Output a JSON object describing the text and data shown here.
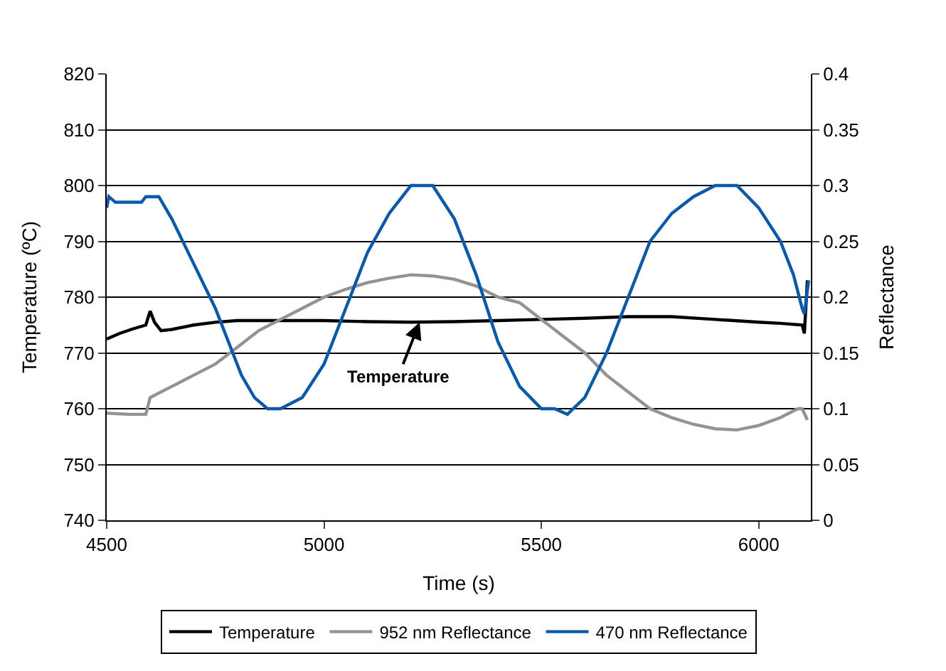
{
  "chart_data": {
    "type": "line",
    "xlabel": "Time (s)",
    "ylabel": "Temperature (ºC)",
    "y2label": "Reflectance",
    "xlim": [
      4500,
      6120
    ],
    "xticks": [
      4500,
      5000,
      5500,
      6000
    ],
    "ylim": [
      740,
      820
    ],
    "yticks": [
      740,
      750,
      760,
      770,
      780,
      790,
      800,
      810,
      820
    ],
    "y2lim": [
      0,
      0.4
    ],
    "y2ticks": [
      0,
      0.05,
      0.1,
      0.15,
      0.2,
      0.25,
      0.3,
      0.35,
      0.4
    ],
    "grid": "y",
    "legend": "bottom",
    "marker": "none",
    "line_style": "solid",
    "annotations": [
      {
        "text": "Temperature",
        "x": 5220,
        "y": 775.5
      }
    ],
    "series": [
      {
        "name": "Temperature",
        "color": "#000000",
        "x": [
          4500,
          4530,
          4560,
          4590,
          4600,
          4610,
          4625,
          4650,
          4700,
          4750,
          4800,
          4900,
          5000,
          5100,
          5200,
          5300,
          5400,
          5500,
          5600,
          5700,
          5800,
          5900,
          6000,
          6050,
          6100,
          6105,
          6112
        ],
        "values": [
          772.5,
          773.5,
          774.3,
          775,
          777.5,
          775.5,
          774,
          774.2,
          775,
          775.5,
          775.8,
          775.8,
          775.8,
          775.6,
          775.5,
          775.6,
          775.8,
          776,
          776.2,
          776.5,
          776.5,
          776,
          775.5,
          775.3,
          775,
          773.5,
          783
        ]
      },
      {
        "name": "952 nm Reflectance",
        "color": "#939393",
        "axis": "y2",
        "x": [
          4500,
          4550,
          4590,
          4600,
          4650,
          4700,
          4750,
          4800,
          4850,
          4900,
          4950,
          5000,
          5050,
          5100,
          5150,
          5200,
          5250,
          5300,
          5350,
          5400,
          5450,
          5500,
          5550,
          5600,
          5650,
          5700,
          5750,
          5800,
          5850,
          5900,
          5950,
          6000,
          6050,
          6090,
          6100,
          6112
        ],
        "values": [
          0.096,
          0.095,
          0.095,
          0.11,
          0.12,
          0.13,
          0.14,
          0.155,
          0.17,
          0.18,
          0.19,
          0.2,
          0.207,
          0.213,
          0.217,
          0.22,
          0.219,
          0.216,
          0.21,
          0.2,
          0.195,
          0.18,
          0.165,
          0.15,
          0.13,
          0.115,
          0.1,
          0.092,
          0.086,
          0.082,
          0.081,
          0.085,
          0.092,
          0.1,
          0.1,
          0.09
        ]
      },
      {
        "name": "470 nm Reflectance",
        "color": "#0a5aa8",
        "axis": "y2",
        "x": [
          4500,
          4505,
          4520,
          4580,
          4590,
          4620,
          4650,
          4700,
          4750,
          4780,
          4810,
          4840,
          4870,
          4900,
          4950,
          5000,
          5050,
          5100,
          5150,
          5180,
          5200,
          5250,
          5300,
          5350,
          5400,
          5450,
          5500,
          5530,
          5560,
          5600,
          5650,
          5700,
          5750,
          5800,
          5850,
          5900,
          5950,
          6000,
          6050,
          6080,
          6100,
          6105,
          6115
        ],
        "values": [
          0.28,
          0.29,
          0.285,
          0.285,
          0.29,
          0.29,
          0.27,
          0.23,
          0.19,
          0.16,
          0.13,
          0.11,
          0.1,
          0.1,
          0.11,
          0.14,
          0.19,
          0.24,
          0.275,
          0.29,
          0.3,
          0.3,
          0.27,
          0.22,
          0.16,
          0.12,
          0.1,
          0.1,
          0.095,
          0.11,
          0.15,
          0.2,
          0.25,
          0.275,
          0.29,
          0.3,
          0.3,
          0.28,
          0.25,
          0.22,
          0.19,
          0.185,
          0.215
        ]
      }
    ]
  }
}
